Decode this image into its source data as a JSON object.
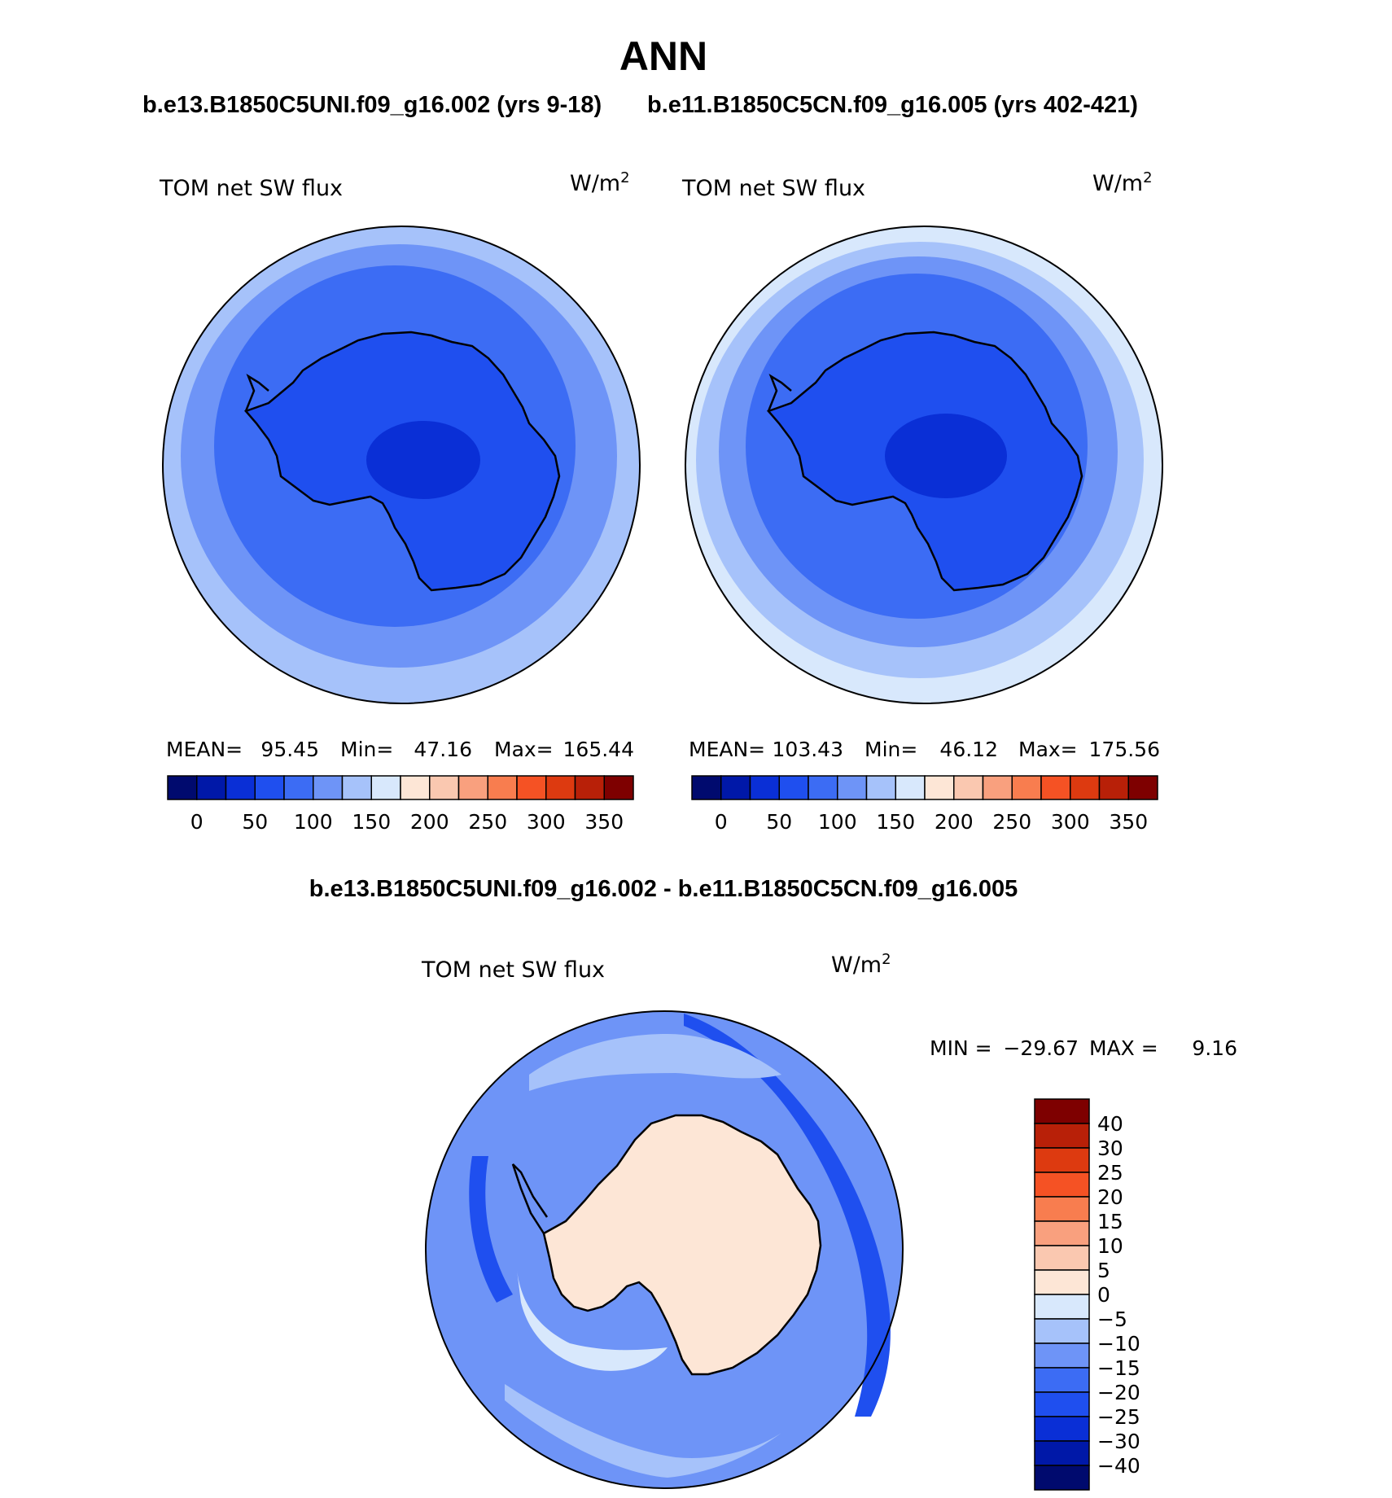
{
  "figure": {
    "season": "ANN",
    "case_a": "b.e13.B1850C5UNI.f09_g16.002 (yrs 9-18)",
    "case_b": "b.e11.B1850C5CN.f09_g16.005 (yrs 402-421)",
    "diff_title": "b.e13.B1850C5UNI.f09_g16.002 - b.e11.B1850C5CN.f09_g16.005"
  },
  "panels": [
    {
      "id": "case-a",
      "variable": "TOM net SW flux",
      "units_base": "W/m",
      "units_exp": "2",
      "stats": {
        "mean_label": "MEAN=",
        "mean": "95.45",
        "min_label": "Min=",
        "min": "47.16",
        "max_label": "Max=",
        "max": "165.44"
      }
    },
    {
      "id": "case-b",
      "variable": "TOM net SW flux",
      "units_base": "W/m",
      "units_exp": "2",
      "stats": {
        "mean_label": "MEAN=",
        "mean": "103.43",
        "min_label": "Min=",
        "min": "46.12",
        "max_label": "Max=",
        "max": "175.56"
      }
    }
  ],
  "diff_panel": {
    "variable": "TOM net SW flux",
    "units_base": "W/m",
    "units_exp": "2",
    "min_label": "MIN =",
    "min": "−29.67",
    "max_label": "MAX =",
    "max": "9.16"
  },
  "colorbars": {
    "abs": {
      "colors": [
        "#000a6e",
        "#0018a8",
        "#0a2fd6",
        "#1f4fef",
        "#3c6cf4",
        "#6e94f7",
        "#a6c2fa",
        "#d8e8fc",
        "#fde6d6",
        "#fac8b0",
        "#f9a07e",
        "#f87d4f",
        "#f55224",
        "#dd3a10",
        "#b82008",
        "#7e0000"
      ],
      "tick_labels": [
        "0",
        "50",
        "100",
        "150",
        "200",
        "250",
        "300",
        "350"
      ]
    },
    "diff": {
      "colors": [
        "#000a6e",
        "#0018a8",
        "#0a2fd6",
        "#1f4fef",
        "#3c6cf4",
        "#6e94f7",
        "#a6c2fa",
        "#d8e8fc",
        "#fde6d6",
        "#fac8b0",
        "#f9a07e",
        "#f87d4f",
        "#f55224",
        "#dd3a10",
        "#b82008",
        "#7e0000"
      ],
      "tick_labels": [
        "−40",
        "−30",
        "−25",
        "−20",
        "−15",
        "−10",
        "−5",
        "0",
        "5",
        "10",
        "15",
        "20",
        "25",
        "30",
        "40"
      ]
    }
  },
  "map_colors": {
    "ring_outer": "#a6c2fa",
    "ring_mid": "#6e94f7",
    "ring_inner": "#3c6cf4",
    "continent_abs": "#1f4fef",
    "continent_core": "#0a2fd6",
    "edge_pale": "#d8e8fc",
    "diff_base": "#6e94f7",
    "diff_pale": "#a6c2fa",
    "diff_strong": "#1f4fef",
    "diff_continent": "#fde6d6",
    "coast": "#000000"
  }
}
